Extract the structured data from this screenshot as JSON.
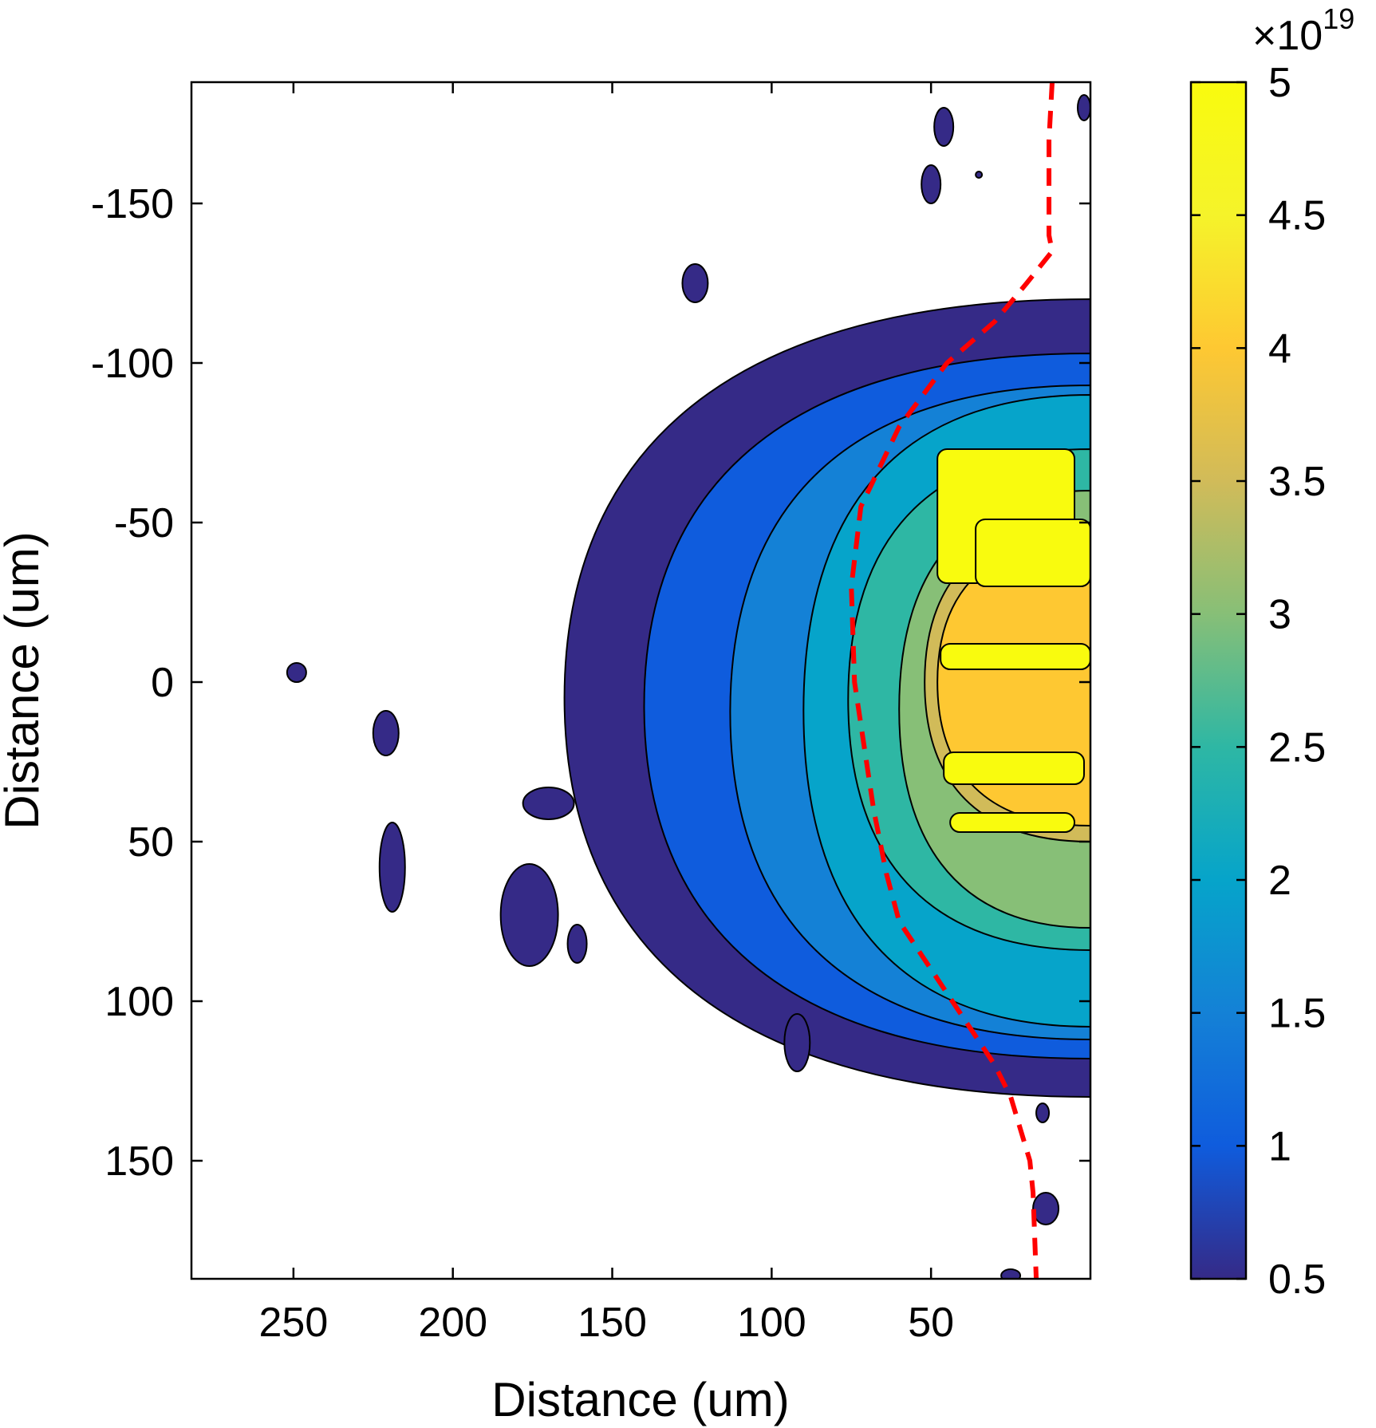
{
  "chart_data": {
    "type": "contour",
    "xlabel": "Distance (um)",
    "ylabel": "Distance (um)",
    "x_direction": "reversed",
    "y_direction": "reversed",
    "xlim": [
      282,
      0
    ],
    "ylim": [
      -188,
      187
    ],
    "x_ticks": [
      250,
      200,
      150,
      100,
      50
    ],
    "y_ticks": [
      -150,
      -100,
      -50,
      0,
      50,
      100,
      150
    ],
    "x_tick_labels": [
      "250",
      "200",
      "150",
      "100",
      "50"
    ],
    "y_tick_labels": [
      "-150",
      "-100",
      "-50",
      "0",
      "50",
      "100",
      "150"
    ],
    "grid": false,
    "colorbar": {
      "colormap": "parula",
      "clim": [
        0.5,
        5
      ],
      "ticks": [
        0.5,
        1,
        1.5,
        2,
        2.5,
        3,
        3.5,
        4,
        4.5,
        5
      ],
      "tick_labels": [
        "0.5",
        "1",
        "1.5",
        "2",
        "2.5",
        "3",
        "3.5",
        "4",
        "4.5",
        "5"
      ],
      "multiplier_base": "×10",
      "multiplier_exponent": "19",
      "stops": [
        "#352a87",
        "#0f5cdd",
        "#1481d6",
        "#06a4ca",
        "#2eb7a4",
        "#87bf77",
        "#d1bb59",
        "#fec832",
        "#f5f32a",
        "#f9fb0e"
      ]
    },
    "contour_levels": [
      0.5,
      1,
      1.5,
      2,
      2.5,
      3,
      3.5,
      4,
      4.5,
      5
    ],
    "level_colors": [
      "#352a87",
      "#0f5cdd",
      "#1481d6",
      "#06a4ca",
      "#2eb7a4",
      "#87bf77",
      "#d1bb59",
      "#fec832",
      "#f9fb0e"
    ],
    "main_region": {
      "level_bands": [
        {
          "level": 0.5,
          "x_left": 165,
          "y_top": -120,
          "y_bottom": 130
        },
        {
          "level": 1.0,
          "x_left": 140,
          "y_top": -103,
          "y_bottom": 118
        },
        {
          "level": 1.5,
          "x_left": 113,
          "y_top": -93,
          "y_bottom": 112
        },
        {
          "level": 2.0,
          "x_left": 90,
          "y_top": -90,
          "y_bottom": 108
        },
        {
          "level": 2.5,
          "x_left": 76,
          "y_top": -73,
          "y_bottom": 84
        },
        {
          "level": 3.0,
          "x_left": 60,
          "y_top": -60,
          "y_bottom": 77
        },
        {
          "level": 3.5,
          "x_left": 52,
          "y_top": -50,
          "y_bottom": 50
        },
        {
          "level": 4.0,
          "x_left": 48,
          "y_top": -45,
          "y_bottom": 45
        }
      ],
      "high_density_bars": [
        {
          "x_left": 48,
          "x_right": 5,
          "y_top": -73,
          "y_bottom": -31
        },
        {
          "x_left": 36,
          "x_right": 0,
          "y_top": -51,
          "y_bottom": -30
        },
        {
          "x_left": 47,
          "x_right": 0,
          "y_top": -12,
          "y_bottom": -4
        },
        {
          "x_left": 46,
          "x_right": 2,
          "y_top": 22,
          "y_bottom": 32
        },
        {
          "x_left": 44,
          "x_right": 5,
          "y_top": 41,
          "y_bottom": 47
        }
      ]
    },
    "isolated_islands": [
      {
        "x": 249,
        "y": -3,
        "rx": 3,
        "ry": 3
      },
      {
        "x": 221,
        "y": 16,
        "rx": 4,
        "ry": 7
      },
      {
        "x": 219,
        "y": 58,
        "rx": 4,
        "ry": 14
      },
      {
        "x": 176,
        "y": 73,
        "rx": 9,
        "ry": 16
      },
      {
        "x": 170,
        "y": 38,
        "rx": 8,
        "ry": 5
      },
      {
        "x": 161,
        "y": 82,
        "rx": 3,
        "ry": 6
      },
      {
        "x": 124,
        "y": -125,
        "rx": 4,
        "ry": 6
      },
      {
        "x": 92,
        "y": 113,
        "rx": 4,
        "ry": 9
      },
      {
        "x": 46,
        "y": -174,
        "rx": 3,
        "ry": 6
      },
      {
        "x": 50,
        "y": -156,
        "rx": 3,
        "ry": 6
      },
      {
        "x": 35,
        "y": -159,
        "rx": 1,
        "ry": 1
      },
      {
        "x": 15,
        "y": 135,
        "rx": 2,
        "ry": 3
      },
      {
        "x": 14,
        "y": 165,
        "rx": 4,
        "ry": 5
      },
      {
        "x": 25,
        "y": 186,
        "rx": 3,
        "ry": 2
      },
      {
        "x": 2,
        "y": -180,
        "rx": 2,
        "ry": 4
      }
    ],
    "boundary_line": {
      "style": "dashed",
      "color": "#ff0000",
      "points": [
        [
          12,
          -188
        ],
        [
          13,
          -170
        ],
        [
          13,
          -140
        ],
        [
          12,
          -135
        ],
        [
          20,
          -125
        ],
        [
          30,
          -113
        ],
        [
          45,
          -100
        ],
        [
          60,
          -80
        ],
        [
          72,
          -55
        ],
        [
          75,
          -30
        ],
        [
          74,
          0
        ],
        [
          71,
          20
        ],
        [
          68,
          40
        ],
        [
          64,
          60
        ],
        [
          60,
          75
        ],
        [
          50,
          90
        ],
        [
          40,
          105
        ],
        [
          30,
          120
        ],
        [
          25,
          130
        ],
        [
          19,
          150
        ],
        [
          18,
          160
        ],
        [
          17,
          187
        ]
      ]
    }
  }
}
